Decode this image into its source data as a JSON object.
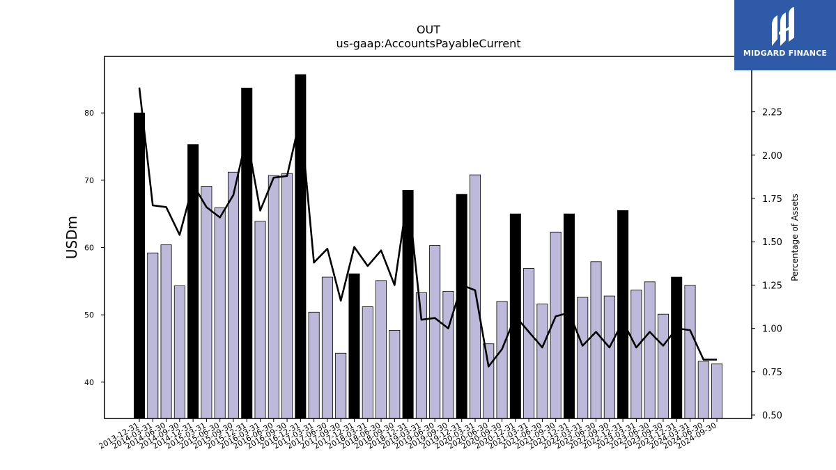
{
  "brand": {
    "name": "MIDGARD FINANCE",
    "logo_color": "#2f5aa8"
  },
  "chart_data": {
    "type": "bar",
    "title": "OUT",
    "subtitle": "us-gaap:AccountsPayableCurrent",
    "ylabel": "USDm",
    "y2label": "Percentage of Assets",
    "ylim": [
      34.6,
      88.4
    ],
    "y_ticks": [
      40,
      50,
      60,
      70,
      80
    ],
    "y2lim": [
      0.48,
      2.57
    ],
    "y2_ticks": [
      "0.50",
      "0.75",
      "1.00",
      "1.25",
      "1.50",
      "1.75",
      "2.00",
      "2.25"
    ],
    "grid": false,
    "colors": {
      "q4_bar": "#000000",
      "other_bar": "#bdb9da",
      "line": "#000000"
    },
    "categories": [
      "2013-12-31",
      "2014-03-31",
      "2014-06-30",
      "2014-09-30",
      "2014-12-31",
      "2015-03-31",
      "2015-06-30",
      "2015-09-30",
      "2015-12-31",
      "2016-03-31",
      "2016-06-30",
      "2016-09-30",
      "2016-12-31",
      "2017-03-31",
      "2017-06-30",
      "2017-09-30",
      "2017-12-31",
      "2018-03-31",
      "2018-06-30",
      "2018-09-30",
      "2018-12-31",
      "2019-03-31",
      "2019-06-30",
      "2019-09-30",
      "2019-12-31",
      "2020-03-31",
      "2020-06-30",
      "2020-09-30",
      "2020-12-31",
      "2021-03-31",
      "2021-06-30",
      "2021-09-30",
      "2021-12-31",
      "2022-03-31",
      "2022-06-30",
      "2022-09-30",
      "2022-12-31",
      "2023-03-31",
      "2023-06-30",
      "2023-09-30",
      "2023-12-31",
      "2024-03-31",
      "2024-06-30",
      "2024-09-30"
    ],
    "series": [
      {
        "axis": "left",
        "kind": "bar",
        "values": [
          80.0,
          59.2,
          60.4,
          54.3,
          75.3,
          69.1,
          65.9,
          71.2,
          83.7,
          63.9,
          70.7,
          71.0,
          85.7,
          50.4,
          55.6,
          44.3,
          56.1,
          51.2,
          55.1,
          47.7,
          68.5,
          53.3,
          60.3,
          53.5,
          67.9,
          70.8,
          45.7,
          52.0,
          65.0,
          56.9,
          51.6,
          62.3,
          65.0,
          52.6,
          57.9,
          52.8,
          65.5,
          53.7,
          54.9,
          50.1,
          55.6,
          54.4,
          43.1,
          42.7
        ],
        "highlight_indices": [
          0,
          4,
          8,
          12,
          16,
          20,
          24,
          28,
          32,
          36,
          40
        ]
      },
      {
        "axis": "right",
        "kind": "line",
        "values": [
          2.39,
          1.71,
          1.7,
          1.54,
          1.83,
          1.7,
          1.64,
          1.77,
          2.11,
          1.68,
          1.87,
          1.88,
          2.22,
          1.38,
          1.46,
          1.16,
          1.47,
          1.36,
          1.45,
          1.25,
          1.78,
          1.05,
          1.06,
          1.0,
          1.25,
          1.22,
          0.78,
          0.88,
          1.07,
          0.98,
          0.89,
          1.07,
          1.09,
          0.9,
          0.98,
          0.89,
          1.04,
          0.89,
          0.98,
          0.9,
          1.0,
          0.99,
          0.82,
          0.82
        ]
      }
    ]
  }
}
